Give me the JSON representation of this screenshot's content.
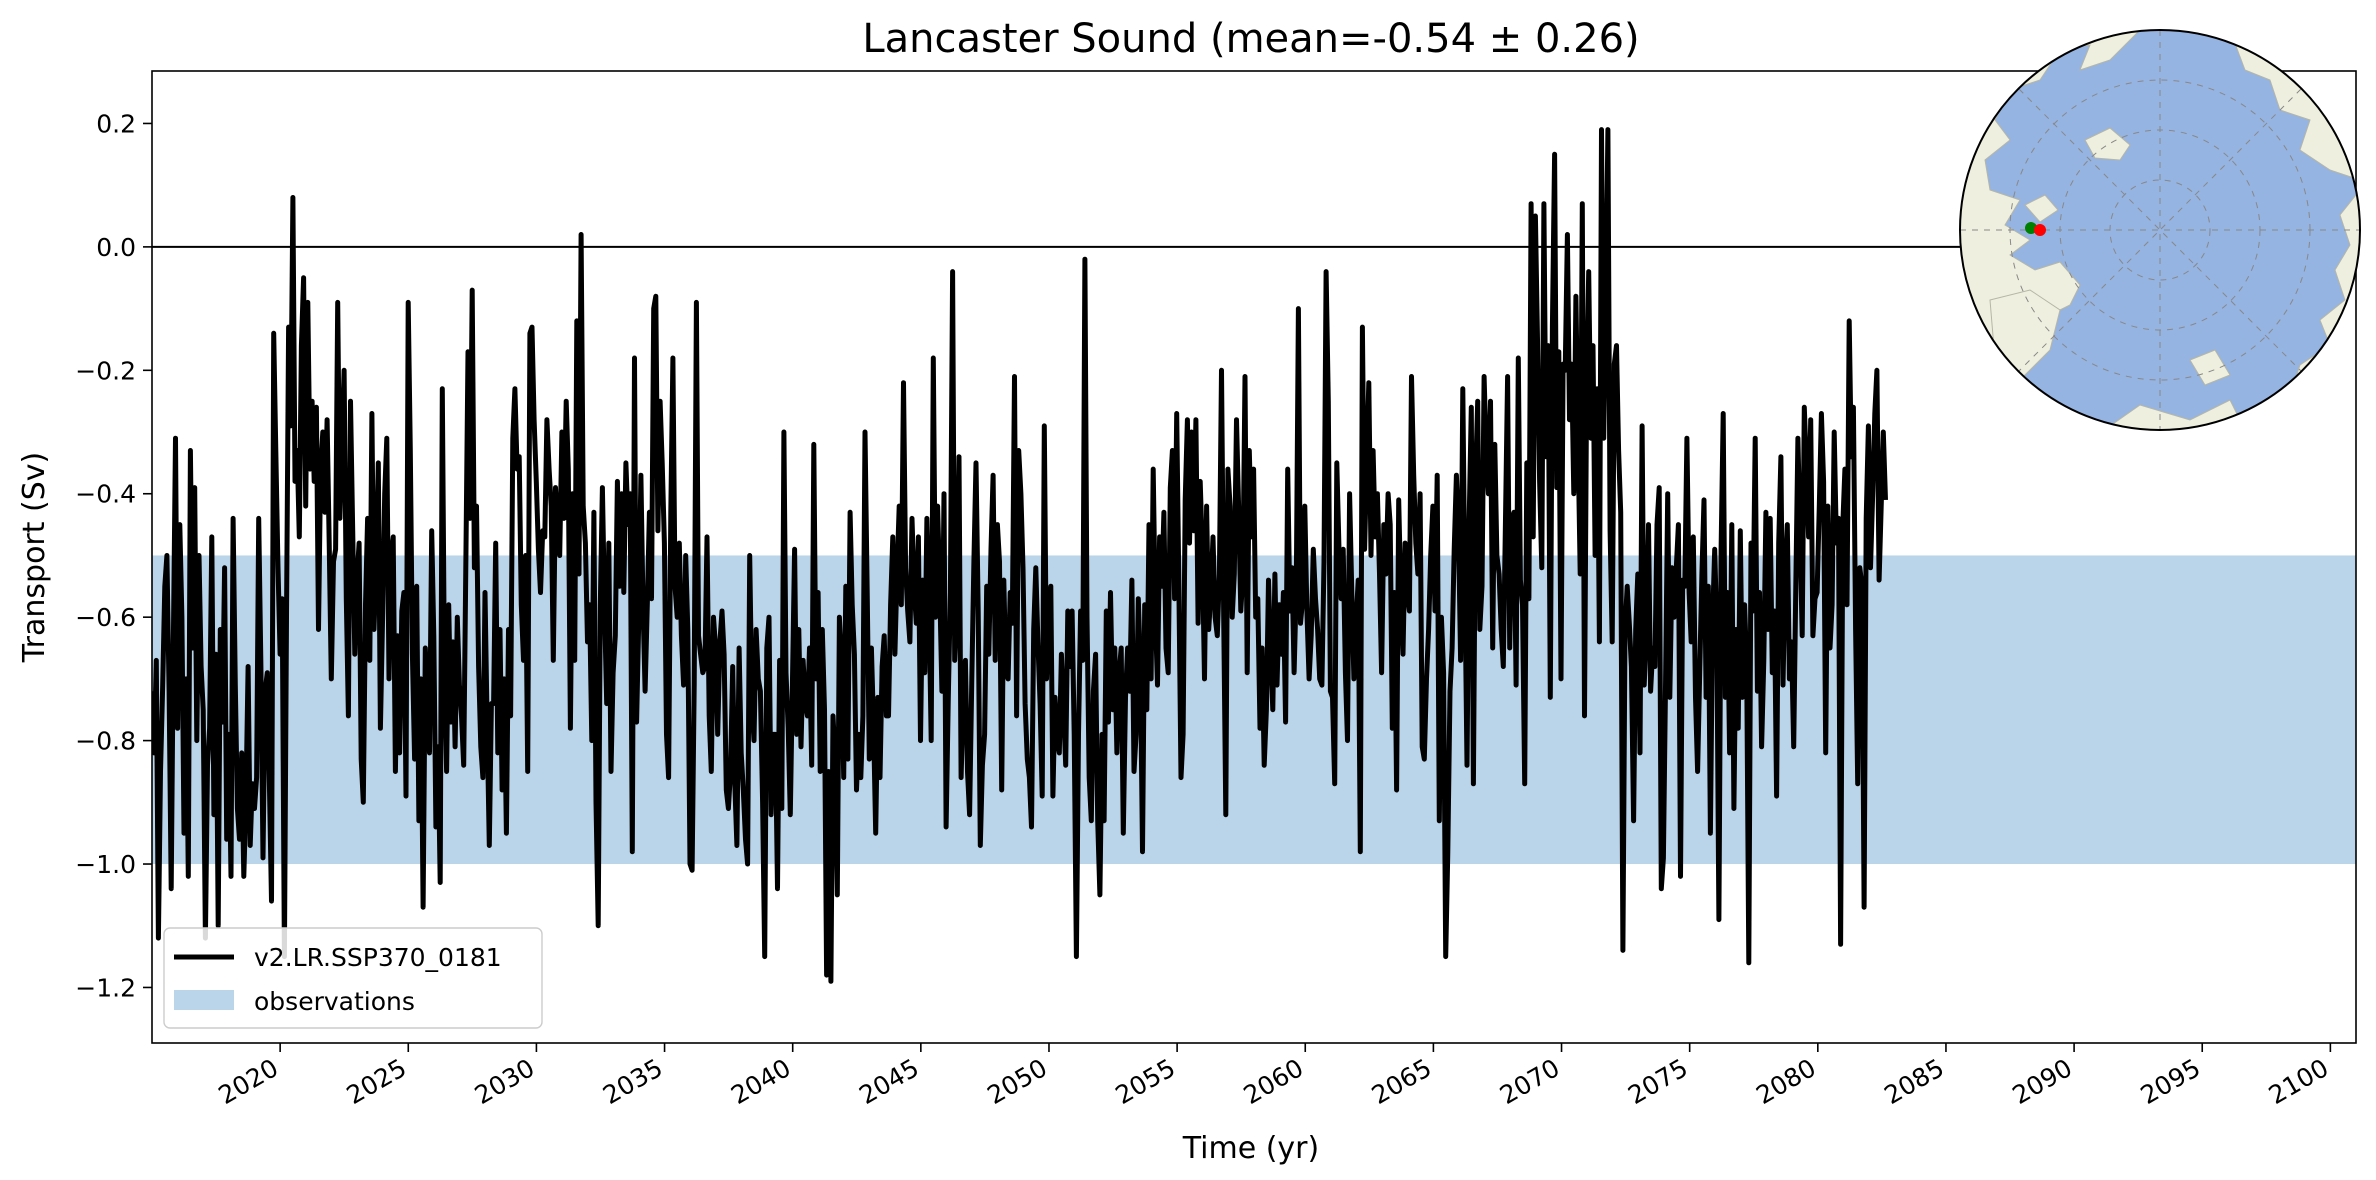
{
  "chart_data": {
    "type": "line",
    "title": "Lancaster Sound (mean=-0.54 ± 0.26)",
    "xlabel": "Time (yr)",
    "ylabel": "Transport (Sv)",
    "xlim": [
      2015.0,
      2101.0
    ],
    "ylim": [
      -1.29,
      0.285
    ],
    "x_ticks": [
      2020,
      2025,
      2030,
      2035,
      2040,
      2045,
      2050,
      2055,
      2060,
      2065,
      2070,
      2075,
      2080,
      2085,
      2090,
      2095,
      2100
    ],
    "x_tick_labels": [
      "2020",
      "2025",
      "2030",
      "2035",
      "2040",
      "2045",
      "2050",
      "2055",
      "2060",
      "2065",
      "2070",
      "2075",
      "2080",
      "2085",
      "2090",
      "2095",
      "2100"
    ],
    "y_ticks": [
      0.2,
      0.0,
      -0.2,
      -0.4,
      -0.6,
      -0.8,
      -1.0,
      -1.2
    ],
    "y_tick_labels": [
      "0.2",
      "0.0",
      "−0.2",
      "−0.4",
      "−0.6",
      "−0.8",
      "−1.0",
      "−1.2"
    ],
    "reference_line": 0.0,
    "observation_band": [
      -1.0,
      -0.5
    ],
    "series": [
      {
        "name": "v2.LR.SSP370_0181",
        "color": "#000000",
        "x_start": 2015.0,
        "x_step": 0.0833,
        "values": [
          -0.72,
          -0.82,
          -0.67,
          -1.12,
          -0.85,
          -0.71,
          -0.55,
          -0.5,
          -0.72,
          -1.04,
          -0.65,
          -0.31,
          -0.78,
          -0.45,
          -0.6,
          -0.95,
          -0.7,
          -1.02,
          -0.33,
          -0.65,
          -0.39,
          -0.8,
          -0.5,
          -0.68,
          -0.75,
          -1.12,
          -0.84,
          -0.78,
          -0.47,
          -0.92,
          -0.66,
          -1.1,
          -0.62,
          -0.77,
          -0.52,
          -0.96,
          -0.79,
          -1.02,
          -0.44,
          -0.71,
          -0.91,
          -0.96,
          -0.82,
          -1.02,
          -0.9,
          -0.68,
          -0.97,
          -0.87,
          -0.91,
          -0.86,
          -0.44,
          -0.68,
          -0.99,
          -0.72,
          -0.69,
          -0.87,
          -1.06,
          -0.14,
          -0.33,
          -0.52,
          -0.66,
          -0.57,
          -1.15,
          -0.6,
          -0.13,
          -0.29,
          0.08,
          -0.38,
          -0.33,
          -0.47,
          -0.16,
          -0.05,
          -0.42,
          -0.09,
          -0.36,
          -0.25,
          -0.38,
          -0.26,
          -0.62,
          -0.36,
          -0.3,
          -0.43,
          -0.28,
          -0.48,
          -0.7,
          -0.51,
          -0.49,
          -0.09,
          -0.44,
          -0.32,
          -0.2,
          -0.57,
          -0.76,
          -0.25,
          -0.46,
          -0.66,
          -0.54,
          -0.48,
          -0.83,
          -0.9,
          -0.58,
          -0.44,
          -0.67,
          -0.27,
          -0.62,
          -0.51,
          -0.35,
          -0.78,
          -0.6,
          -0.4,
          -0.31,
          -0.7,
          -0.5,
          -0.47,
          -0.85,
          -0.63,
          -0.82,
          -0.59,
          -0.56,
          -0.89,
          -0.09,
          -0.33,
          -0.66,
          -0.83,
          -0.55,
          -0.93,
          -0.7,
          -1.07,
          -0.65,
          -0.73,
          -0.82,
          -0.46,
          -0.63,
          -0.94,
          -0.81,
          -1.03,
          -0.23,
          -0.7,
          -0.85,
          -0.58,
          -0.77,
          -0.64,
          -0.81,
          -0.6,
          -0.71,
          -0.76,
          -0.84,
          -0.52,
          -0.17,
          -0.44,
          -0.07,
          -0.52,
          -0.42,
          -0.68,
          -0.81,
          -0.86,
          -0.56,
          -0.78,
          -0.97,
          -0.74,
          -0.74,
          -0.48,
          -0.82,
          -0.62,
          -0.88,
          -0.7,
          -0.95,
          -0.62,
          -0.76,
          -0.31,
          -0.23,
          -0.36,
          -0.34,
          -0.58,
          -0.67,
          -0.5,
          -0.85,
          -0.14,
          -0.13,
          -0.28,
          -0.38,
          -0.49,
          -0.56,
          -0.46,
          -0.47,
          -0.28,
          -0.36,
          -0.42,
          -0.67,
          -0.39,
          -0.45,
          -0.5,
          -0.3,
          -0.44,
          -0.25,
          -0.36,
          -0.78,
          -0.4,
          -0.67,
          -0.12,
          -0.53,
          0.02,
          -0.42,
          -0.48,
          -0.64,
          -0.58,
          -0.8,
          -0.43,
          -0.9,
          -1.1,
          -0.58,
          -0.39,
          -0.59,
          -0.74,
          -0.48,
          -0.85,
          -0.69,
          -0.63,
          -0.38,
          -0.55,
          -0.4,
          -0.56,
          -0.35,
          -0.45,
          -0.4,
          -0.98,
          -0.18,
          -0.77,
          -0.61,
          -0.37,
          -0.58,
          -0.72,
          -0.58,
          -0.43,
          -0.57,
          -0.1,
          -0.08,
          -0.46,
          -0.25,
          -0.35,
          -0.48,
          -0.79,
          -0.86,
          -0.43,
          -0.18,
          -0.55,
          -0.6,
          -0.48,
          -0.63,
          -0.71,
          -0.5,
          -0.62,
          -1.0,
          -1.01,
          -0.71,
          -0.09,
          -0.63,
          -0.66,
          -0.69,
          -0.68,
          -0.47,
          -0.76,
          -0.85,
          -0.6,
          -0.65,
          -0.79,
          -0.64,
          -0.59,
          -0.66,
          -0.88,
          -0.91,
          -0.85,
          -0.68,
          -0.87,
          -0.97,
          -0.65,
          -0.82,
          -0.88,
          -0.96,
          -1.0,
          -0.5,
          -0.74,
          -0.8,
          -0.62,
          -0.7,
          -0.72,
          -0.9,
          -1.15,
          -0.65,
          -0.6,
          -0.92,
          -0.79,
          -0.79,
          -1.04,
          -0.67,
          -0.91,
          -0.3,
          -0.69,
          -0.78,
          -0.92,
          -0.71,
          -0.49,
          -0.79,
          -0.62,
          -0.81,
          -0.67,
          -0.74,
          -0.76,
          -0.65,
          -0.84,
          -0.32,
          -0.7,
          -0.56,
          -0.85,
          -0.62,
          -0.75,
          -1.18,
          -0.85,
          -1.19,
          -0.76,
          -0.83,
          -1.05,
          -0.6,
          -0.67,
          -0.86,
          -0.55,
          -0.83,
          -0.43,
          -0.58,
          -0.66,
          -0.88,
          -0.79,
          -0.86,
          -0.76,
          -0.3,
          -0.56,
          -0.83,
          -0.65,
          -0.78,
          -0.95,
          -0.73,
          -0.86,
          -0.68,
          -0.63,
          -0.76,
          -0.76,
          -0.58,
          -0.47,
          -0.66,
          -0.53,
          -0.42,
          -0.58,
          -0.22,
          -0.52,
          -0.59,
          -0.64,
          -0.44,
          -0.55,
          -0.61,
          -0.47,
          -0.8,
          -0.54,
          -0.69,
          -0.44,
          -0.59,
          -0.8,
          -0.18,
          -0.6,
          -0.42,
          -0.55,
          -0.72,
          -0.4,
          -0.94,
          -0.73,
          -0.56,
          -0.04,
          -0.67,
          -0.59,
          -0.34,
          -0.86,
          -0.73,
          -0.67,
          -0.85,
          -0.92,
          -0.7,
          -0.51,
          -0.35,
          -0.59,
          -0.97,
          -0.84,
          -0.79,
          -0.55,
          -0.66,
          -0.49,
          -0.37,
          -0.67,
          -0.45,
          -0.51,
          -0.88,
          -0.54,
          -0.69,
          -0.7,
          -0.56,
          -0.61,
          -0.21,
          -0.76,
          -0.33,
          -0.4,
          -0.52,
          -0.74,
          -0.83,
          -0.86,
          -0.94,
          -0.62,
          -0.52,
          -0.64,
          -0.74,
          -0.89,
          -0.29,
          -0.7,
          -0.59,
          -0.55,
          -0.89,
          -0.73,
          -0.8,
          -0.82,
          -0.66,
          -0.75,
          -0.84,
          -0.59,
          -0.68,
          -0.59,
          -0.79,
          -1.15,
          -0.79,
          -0.59,
          -0.67,
          -0.02,
          -0.6,
          -0.86,
          -0.93,
          -0.72,
          -0.66,
          -0.93,
          -1.05,
          -0.79,
          -0.93,
          -0.59,
          -0.77,
          -0.56,
          -0.75,
          -0.65,
          -0.82,
          -0.69,
          -0.65,
          -0.95,
          -0.73,
          -0.65,
          -0.72,
          -0.54,
          -0.85,
          -0.79,
          -0.57,
          -0.68,
          -0.98,
          -0.58,
          -0.75,
          -0.45,
          -0.7,
          -0.36,
          -0.6,
          -0.71,
          -0.47,
          -0.55,
          -0.43,
          -0.65,
          -0.69,
          -0.39,
          -0.33,
          -0.57,
          -0.27,
          -0.54,
          -0.86,
          -0.79,
          -0.41,
          -0.28,
          -0.48,
          -0.3,
          -0.46,
          -0.28,
          -0.61,
          -0.38,
          -0.49,
          -0.7,
          -0.42,
          -0.62,
          -0.56,
          -0.47,
          -0.6,
          -0.63,
          -0.53,
          -0.2,
          -0.6,
          -0.92,
          -0.36,
          -0.42,
          -0.6,
          -0.53,
          -0.28,
          -0.42,
          -0.59,
          -0.53,
          -0.21,
          -0.69,
          -0.33,
          -0.47,
          -0.36,
          -0.6,
          -0.57,
          -0.78,
          -0.65,
          -0.84,
          -0.75,
          -0.54,
          -0.66,
          -0.75,
          -0.53,
          -0.71,
          -0.58,
          -0.66,
          -0.56,
          -0.77,
          -0.36,
          -0.59,
          -0.52,
          -0.69,
          -0.55,
          -0.1,
          -0.61,
          -0.57,
          -0.42,
          -0.59,
          -0.7,
          -0.63,
          -0.49,
          -0.57,
          -0.62,
          -0.7,
          -0.71,
          -0.51,
          -0.04,
          -0.25,
          -0.72,
          -0.73,
          -0.87,
          -0.35,
          -0.49,
          -0.57,
          -0.49,
          -0.69,
          -0.8,
          -0.4,
          -0.56,
          -0.7,
          -0.61,
          -0.54,
          -0.98,
          -0.13,
          -0.49,
          -0.35,
          -0.22,
          -0.5,
          -0.33,
          -0.47,
          -0.4,
          -0.53,
          -0.69,
          -0.45,
          -0.53,
          -0.4,
          -0.45,
          -0.78,
          -0.56,
          -0.88,
          -0.41,
          -0.57,
          -0.66,
          -0.48,
          -0.56,
          -0.59,
          -0.21,
          -0.37,
          -0.48,
          -0.53,
          -0.4,
          -0.81,
          -0.83,
          -0.7,
          -0.62,
          -0.5,
          -0.42,
          -0.59,
          -0.37,
          -0.93,
          -0.6,
          -0.69,
          -1.15,
          -0.98,
          -0.72,
          -0.65,
          -0.49,
          -0.37,
          -0.46,
          -0.67,
          -0.23,
          -0.55,
          -0.84,
          -0.44,
          -0.26,
          -0.87,
          -0.37,
          -0.25,
          -0.62,
          -0.55,
          -0.21,
          -0.34,
          -0.4,
          -0.25,
          -0.65,
          -0.32,
          -0.5,
          -0.53,
          -0.62,
          -0.68,
          -0.44,
          -0.21,
          -0.65,
          -0.44,
          -0.43,
          -0.71,
          -0.18,
          -0.54,
          -0.58,
          -0.87,
          -0.35,
          -0.57,
          0.07,
          -0.47,
          0.05,
          -0.15,
          -0.38,
          -0.52,
          0.07,
          -0.34,
          -0.16,
          -0.73,
          -0.13,
          0.15,
          -0.39,
          -0.17,
          -0.7,
          -0.19,
          -0.2,
          0.02,
          -0.28,
          -0.19,
          -0.4,
          -0.08,
          -0.31,
          -0.53,
          0.07,
          -0.76,
          -0.23,
          -0.04,
          -0.31,
          -0.16,
          -0.5,
          -0.23,
          -0.64,
          0.19,
          -0.31,
          -0.1,
          0.19,
          -0.46,
          -0.64,
          -0.19,
          -0.16,
          -0.33,
          -0.43,
          -1.14,
          -0.62,
          -0.55,
          -0.61,
          -0.68,
          -0.93,
          -0.62,
          -0.53,
          -0.82,
          -0.29,
          -0.71,
          -0.62,
          -0.45,
          -0.72,
          -0.65,
          -0.68,
          -0.45,
          -0.39,
          -1.04,
          -0.99,
          -0.7,
          -0.4,
          -0.73,
          -0.52,
          -0.6,
          -0.52,
          -0.45,
          -1.02,
          -0.54,
          -0.55,
          -0.31,
          -0.56,
          -0.64,
          -0.47,
          -0.73,
          -0.85,
          -0.69,
          -0.53,
          -0.41,
          -0.73,
          -0.55,
          -0.95,
          -0.61,
          -0.49,
          -0.62,
          -1.09,
          -0.49,
          -0.27,
          -0.73,
          -0.56,
          -0.82,
          -0.45,
          -0.91,
          -0.62,
          -0.78,
          -0.46,
          -0.73,
          -0.58,
          -0.68,
          -1.16,
          -0.48,
          -0.59,
          -0.31,
          -0.72,
          -0.56,
          -0.81,
          -0.67,
          -0.43,
          -0.62,
          -0.44,
          -0.69,
          -0.59,
          -0.89,
          -0.48,
          -0.34,
          -0.71,
          -0.53,
          -0.45,
          -0.7,
          -0.64,
          -0.81,
          -0.55,
          -0.31,
          -0.47,
          -0.63,
          -0.26,
          -0.36,
          -0.47,
          -0.28,
          -0.63,
          -0.57,
          -0.56,
          -0.42,
          -0.27,
          -0.38,
          -0.82,
          -0.42,
          -0.65,
          -0.58,
          -0.3,
          -0.48,
          -0.44,
          -1.13,
          -0.45,
          -0.36,
          -0.58,
          -0.12,
          -0.34,
          -0.26,
          -0.62,
          -0.87,
          -0.52,
          -0.55,
          -1.07,
          -0.44,
          -0.29,
          -0.52,
          -0.4,
          -0.27,
          -0.2,
          -0.54,
          -0.42,
          -0.3,
          -0.41
        ]
      },
      {
        "name": "observations",
        "color": "#bad5ea",
        "band": [
          -1.0,
          -0.5
        ]
      }
    ],
    "legend": {
      "position": "lower-left",
      "entries": [
        {
          "label": "v2.LR.SSP370_0181",
          "color": "#000000",
          "kind": "line"
        },
        {
          "label": "observations",
          "color": "#bad5ea",
          "kind": "patch"
        }
      ]
    },
    "inset_map": {
      "type": "polar-projection",
      "region": "Arctic",
      "ocean_color": "#95b4e2",
      "land_color": "#efefdf",
      "markers": [
        {
          "name": "start",
          "color": "#008000"
        },
        {
          "name": "end",
          "color": "#ff0000"
        }
      ]
    },
    "colors": {
      "line": "#000000",
      "band": "#bad5ea",
      "zero_line": "#000000",
      "axes": "#000000"
    }
  }
}
